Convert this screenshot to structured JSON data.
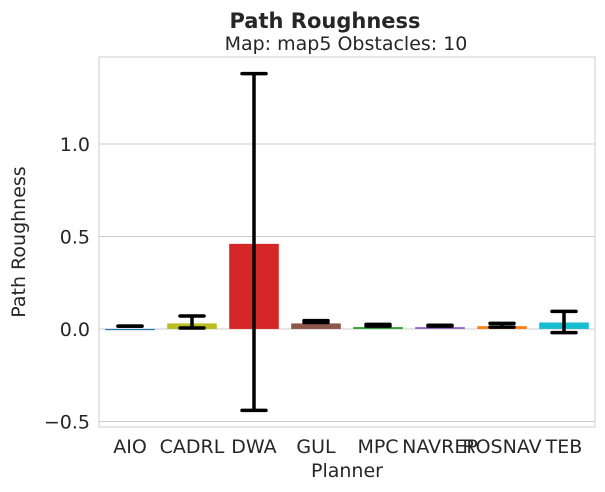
{
  "chart_data": {
    "type": "bar",
    "title": "Path Roughness",
    "subtitle": "Map: map5 Obstacles: 10",
    "xlabel": "Planner",
    "ylabel": "Path Roughness",
    "categories": [
      "AIO",
      "CADRL",
      "DWA",
      "GUL",
      "MPC",
      "NAVREP",
      "ROSNAV",
      "TEB"
    ],
    "values": [
      0.0,
      0.03,
      0.46,
      0.03,
      0.01,
      0.01,
      0.015,
      0.035
    ],
    "error_low": [
      0.015,
      0.005,
      -0.44,
      0.035,
      0.015,
      0.015,
      0.01,
      -0.02
    ],
    "error_high": [
      0.015,
      0.07,
      1.38,
      0.045,
      0.025,
      0.02,
      0.03,
      0.095
    ],
    "colors": [
      "#1f77b4",
      "#bcbd22",
      "#d62728",
      "#8c564b",
      "#2ca02c",
      "#9467bd",
      "#ff7f0e",
      "#17becf"
    ],
    "yticks": [
      -0.5,
      0.0,
      0.5,
      1.0
    ],
    "ytick_labels": [
      "−0.5",
      "0.0",
      "0.5",
      "1.0"
    ],
    "ylim": [
      -0.53,
      1.47
    ],
    "grid": "horizontal",
    "legend": "none"
  }
}
